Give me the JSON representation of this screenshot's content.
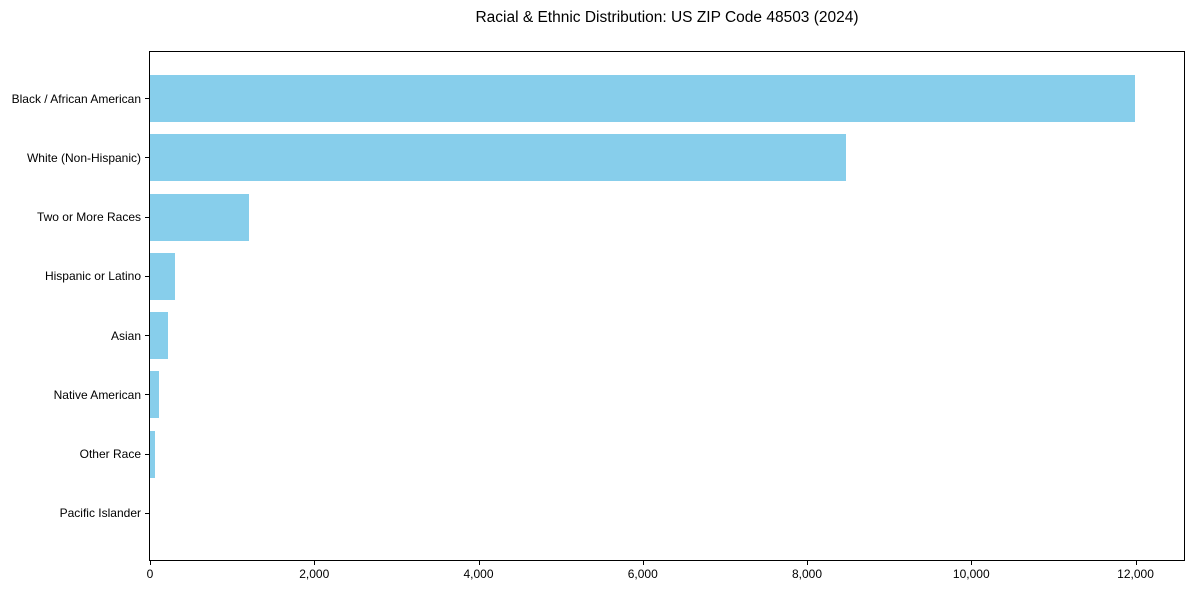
{
  "title": "Racial & Ethnic Distribution: US ZIP Code 48503 (2024)",
  "colors": {
    "bar": "#87CEEB",
    "axis": "#000000",
    "text": "#000000",
    "background": "#FFFFFF"
  },
  "chart_data": {
    "type": "bar",
    "orientation": "horizontal",
    "title": "Racial & Ethnic Distribution: US ZIP Code 48503 (2024)",
    "categories": [
      "Black / African American",
      "White (Non-Hispanic)",
      "Two or More Races",
      "Hispanic or Latino",
      "Asian",
      "Native American",
      "Other Race",
      "Pacific Islander"
    ],
    "values": [
      11990,
      8470,
      1200,
      310,
      215,
      105,
      60,
      0
    ],
    "xlabel": "",
    "ylabel": "",
    "xlim": [
      0,
      12590
    ],
    "xticks": [
      0,
      2000,
      4000,
      6000,
      8000,
      10000,
      12000
    ],
    "xtick_labels": [
      "0",
      "2,000",
      "4,000",
      "6,000",
      "8,000",
      "10,000",
      "12,000"
    ],
    "grid": false,
    "legend_position": "none",
    "bar_color": "#87CEEB"
  }
}
